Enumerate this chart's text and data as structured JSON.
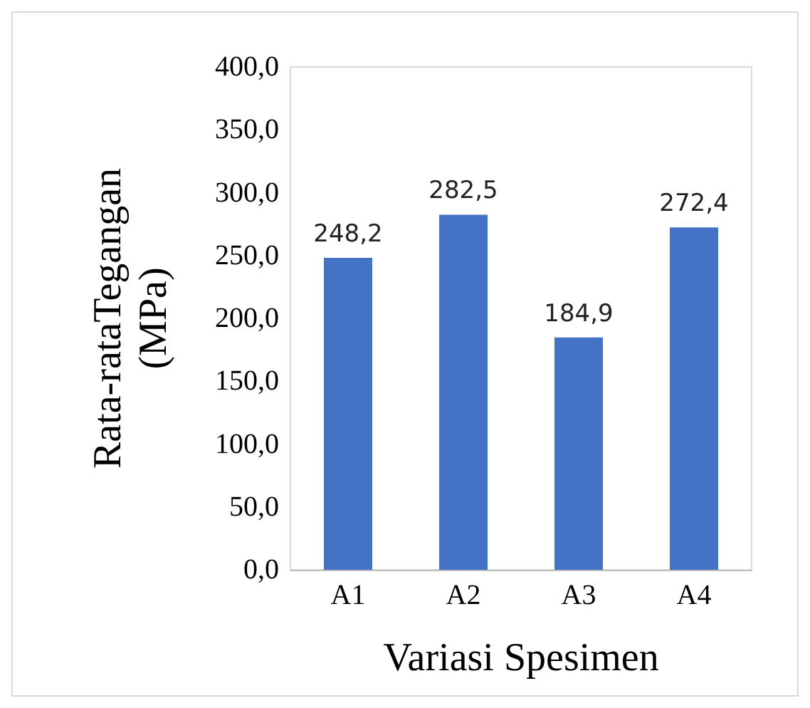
{
  "chart_data": {
    "type": "bar",
    "xlabel": "Variasi Spesimen",
    "ylabel": "Rata-rataTegangan\n(MPa)",
    "categories": [
      "A1",
      "A2",
      "A3",
      "A4"
    ],
    "values": [
      248.2,
      282.5,
      184.9,
      272.4
    ],
    "value_labels": [
      "248,2",
      "282,5",
      "184,9",
      "272,4"
    ],
    "color": "#4472c4",
    "ylim": [
      0,
      400
    ],
    "yticks": [
      {
        "value": 0,
        "label": "0,0"
      },
      {
        "value": 50,
        "label": "50,0"
      },
      {
        "value": 100,
        "label": "100,0"
      },
      {
        "value": 150,
        "label": "150,0"
      },
      {
        "value": 200,
        "label": "200,0"
      },
      {
        "value": 250,
        "label": "250,0"
      },
      {
        "value": 300,
        "label": "300,0"
      },
      {
        "value": 350,
        "label": "350,0"
      },
      {
        "value": 400,
        "label": "400,0"
      }
    ],
    "grid": false
  }
}
